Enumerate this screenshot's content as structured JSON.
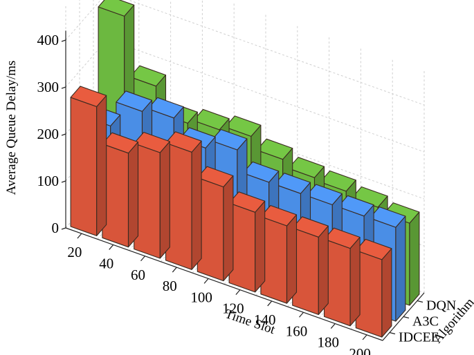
{
  "chart_data": {
    "type": "bar3d",
    "title": "",
    "xlabel": "Time Slot",
    "ylabel": "Algorithm",
    "zlabel": "Average Queue Delay/ms",
    "categories": [
      "20",
      "40",
      "60",
      "80",
      "100",
      "120",
      "140",
      "160",
      "180",
      "200"
    ],
    "zticks": [
      "0",
      "100",
      "200",
      "300",
      "400"
    ],
    "zlim": [
      0,
      400
    ],
    "grid": true,
    "series": [
      {
        "name": "IDCEE",
        "color": "#d8553a",
        "values": [
          275,
          200,
          225,
          250,
          200,
          170,
          165,
          165,
          165,
          165
        ]
      },
      {
        "name": "A3C",
        "color": "#4a8ee6",
        "values": [
          200,
          255,
          265,
          225,
          245,
          200,
          200,
          200,
          200,
          200
        ]
      },
      {
        "name": "DQN",
        "color": "#6cb840",
        "values": [
          400,
          275,
          220,
          230,
          240,
          215,
          200,
          195,
          185,
          175
        ]
      }
    ]
  }
}
